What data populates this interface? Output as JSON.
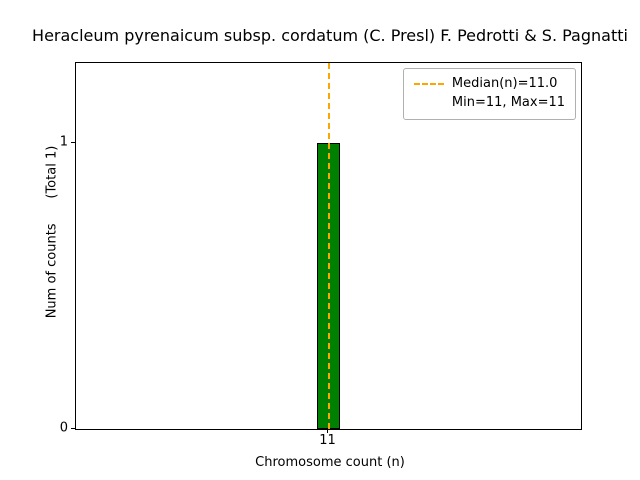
{
  "chart_data": {
    "type": "bar",
    "title": "Heracleum pyrenaicum subsp. cordatum (C. Presl) F. Pedrotti & S. Pagnatti",
    "xlabel": "Chromosome count (n)",
    "ylabel": "Num of counts      (Total 1)",
    "x": [
      11
    ],
    "counts": [
      1
    ],
    "xlim": [
      10.5,
      11.5
    ],
    "ylim": [
      0,
      1.28
    ],
    "bar_width": 0.045,
    "xticks": [
      "11"
    ],
    "yticks": [
      "0",
      "1"
    ],
    "ytick_values": [
      0,
      1
    ],
    "median": 11.0,
    "min": 11,
    "max": 11,
    "legend": [
      "Median(n)=11.0",
      "Min=11, Max=11"
    ],
    "legend_position": "upper right",
    "grid": false,
    "colors": {
      "bar": "#008000",
      "bar_edge": "#000000",
      "median_line": "#FFA500"
    }
  }
}
